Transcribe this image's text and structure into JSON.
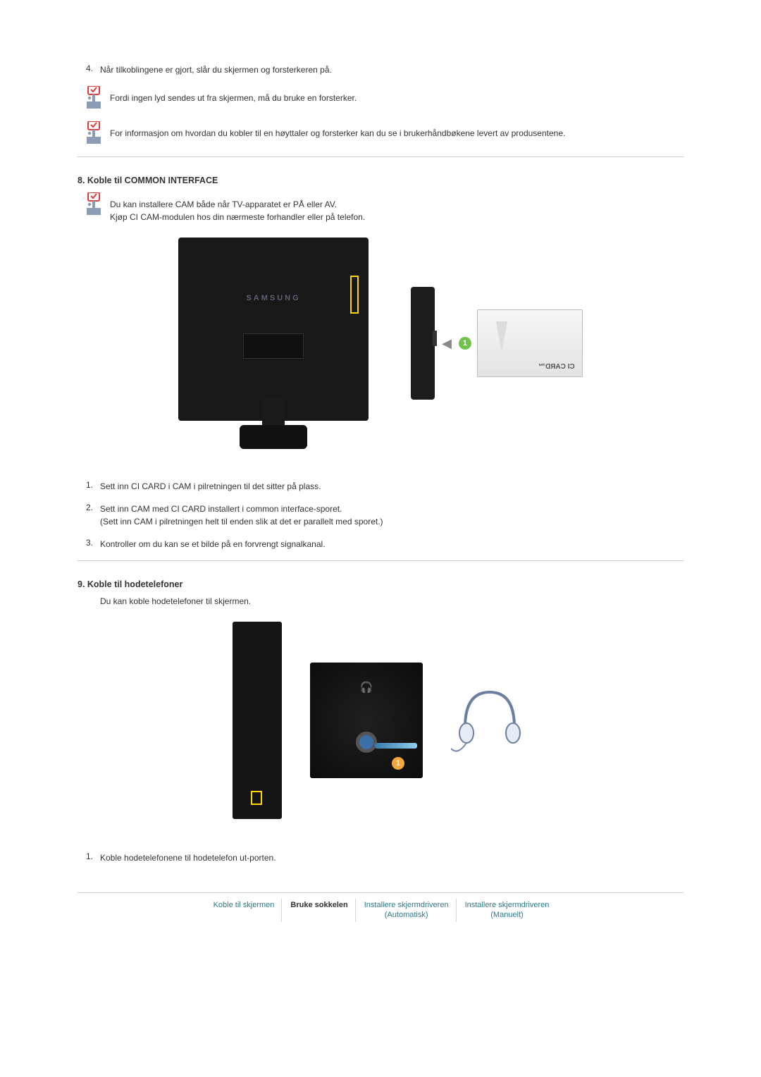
{
  "section7": {
    "item4_num": "4.",
    "item4_text": "Når tilkoblingene er gjort, slår du skjermen og forsterkeren på.",
    "note1": "Fordi ingen lyd sendes ut fra skjermen, må du bruke en forsterker.",
    "note2": "For informasjon om hvordan du kobler til en høyttaler og forsterker kan du se i brukerhåndbøkene levert av produsentene."
  },
  "section8": {
    "title": "8. Koble til COMMON INTERFACE",
    "note_line1": "Du kan installere CAM både når TV-apparatet er PÅ eller AV.",
    "note_line2": "Kjøp CI CAM-modulen hos din nærmeste forhandler eller på telefon.",
    "monitor_logo": "SAMSUNG",
    "ci_badge": "1",
    "ci_card_label": "CI CARD™",
    "items": [
      {
        "num": "1.",
        "text": "Sett inn CI CARD i CAM i pilretningen til det sitter på plass."
      },
      {
        "num": "2.",
        "text": "Sett inn CAM med CI CARD installert i common interface-sporet.",
        "text2": "(Sett inn CAM i pilretningen helt til enden slik at det er parallelt med sporet.)"
      },
      {
        "num": "3.",
        "text": "Kontroller om du kan se et bilde på en forvrengt signalkanal."
      }
    ]
  },
  "section9": {
    "title": "9. Koble til hodetelefoner",
    "intro": "Du kan koble hodetelefoner til skjermen.",
    "hp_badge": "1",
    "item1_num": "1.",
    "item1_text": "Koble hodetelefonene til hodetelefon ut-porten."
  },
  "footer": {
    "links": [
      {
        "label": "Koble til skjermen",
        "style": "teal"
      },
      {
        "label": "Bruke sokkelen",
        "style": "bold"
      },
      {
        "label": "Installere skjermdriveren",
        "sub": "(Automatisk)",
        "style": "teal"
      },
      {
        "label": "Installere skjermdriveren",
        "sub": "(Manuelt)",
        "style": "teal"
      }
    ]
  },
  "colors": {
    "note_icon_tag": "#e23b3b",
    "note_icon_body": "#8a9db5",
    "headphone_stroke": "#6b7fa0"
  }
}
